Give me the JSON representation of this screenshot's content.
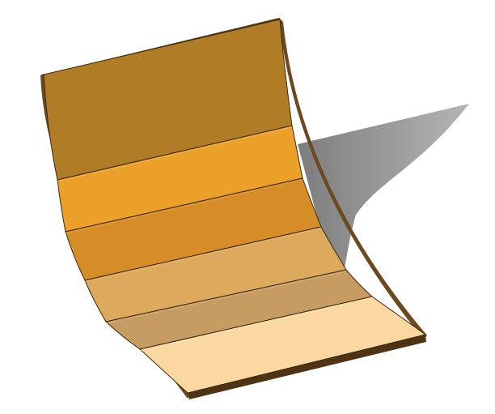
{
  "scene": {
    "background": "#ffffff",
    "shadow_color": "#9a9a9a",
    "edge_color": "#6b4a1f",
    "edge_dark": "#4e3414"
  },
  "panels": [
    {
      "name": "panel-1",
      "color": "#b07c25"
    },
    {
      "name": "panel-2",
      "color": "#eba02a"
    },
    {
      "name": "panel-3",
      "color": "#d68d28"
    },
    {
      "name": "panel-4",
      "color": "#ddaa5d"
    },
    {
      "name": "panel-5",
      "color": "#c69c62"
    },
    {
      "name": "panel-6",
      "color": "#fbd8a2"
    }
  ]
}
